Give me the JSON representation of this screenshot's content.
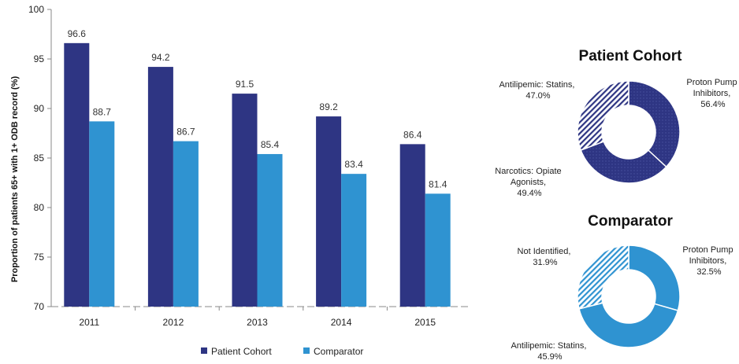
{
  "chart_data": [
    {
      "type": "bar",
      "ylabel": "Proportion of patients 65+ with 1+ ODB record (%)",
      "ylim": [
        70,
        100
      ],
      "yticks": [
        70,
        75,
        80,
        85,
        90,
        95,
        100
      ],
      "grid": false,
      "legend_position": "bottom",
      "categories": [
        "2011",
        "2012",
        "2013",
        "2014",
        "2015"
      ],
      "series": [
        {
          "name": "Patient Cohort",
          "color": "#2e3583",
          "values": [
            96.6,
            94.2,
            91.5,
            89.2,
            86.4
          ],
          "labels": [
            "96.6",
            "94.2",
            "91.5",
            "89.2",
            "86.4"
          ]
        },
        {
          "name": "Comparator",
          "color": "#2f93d1",
          "values": [
            88.7,
            86.7,
            85.4,
            83.4,
            81.4
          ],
          "labels": [
            "88.7",
            "86.7",
            "85.4",
            "83.4",
            "81.4"
          ]
        }
      ]
    },
    {
      "type": "pie",
      "title": "Patient Cohort",
      "color": "#2e3583",
      "slices": [
        {
          "label_lines": [
            "Proton Pump",
            "Inhibitors,",
            "56.4%"
          ],
          "value": 56.4,
          "pattern": "dots"
        },
        {
          "label_lines": [
            "Narcotics: Opiate",
            "Agonists,",
            "49.4%"
          ],
          "value": 49.4,
          "pattern": "dots"
        },
        {
          "label_lines": [
            "Antilipemic: Statins,",
            "47.0%"
          ],
          "value": 47.0,
          "pattern": "hatch"
        }
      ]
    },
    {
      "type": "pie",
      "title": "Comparator",
      "color": "#2f93d1",
      "slices": [
        {
          "label_lines": [
            "Proton Pump",
            "Inhibitors,",
            "32.5%"
          ],
          "value": 32.5,
          "pattern": "solid"
        },
        {
          "label_lines": [
            "Antilipemic: Statins,",
            "45.9%"
          ],
          "value": 45.9,
          "pattern": "solid"
        },
        {
          "label_lines": [
            "Not Identified,",
            "31.9%"
          ],
          "value": 31.9,
          "pattern": "hatch"
        }
      ]
    }
  ]
}
